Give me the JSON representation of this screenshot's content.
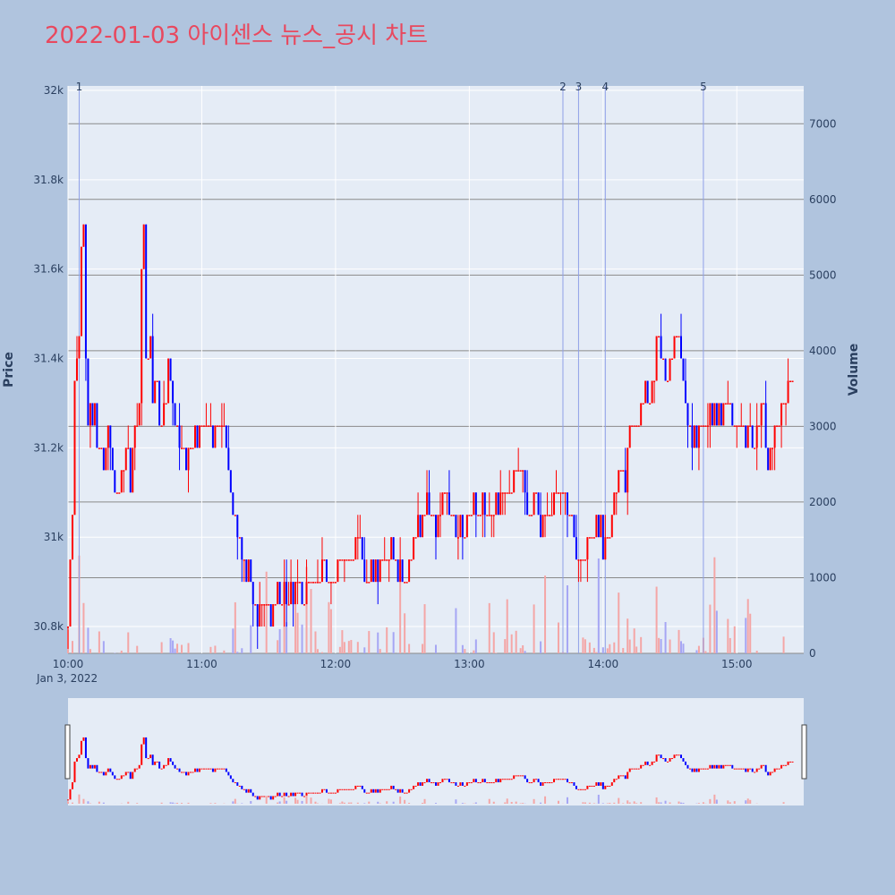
{
  "chart_data": {
    "type": "candlestick",
    "title": "2022-01-03 아이센스 뉴스_공시 차트",
    "ylabel": "Price",
    "y2label": "Volume",
    "x_ticks": [
      "10:00",
      "11:00",
      "12:00",
      "13:00",
      "14:00",
      "15:00"
    ],
    "x_date_label": "Jan 3, 2022",
    "time_range": [
      "10:00",
      "15:30"
    ],
    "price_ticks": [
      "30.8k",
      "31k",
      "31.2k",
      "31.4k",
      "31.6k",
      "31.8k",
      "32k"
    ],
    "price_tick_values": [
      30800,
      31000,
      31200,
      31400,
      31600,
      31800,
      32000
    ],
    "price_range": [
      30740,
      32010
    ],
    "volume_ticks": [
      "0",
      "1000",
      "2000",
      "3000",
      "4000",
      "5000",
      "6000",
      "7000"
    ],
    "volume_tick_values": [
      0,
      1000,
      2000,
      3000,
      4000,
      5000,
      6000,
      7000
    ],
    "volume_range": [
      0,
      7500
    ],
    "colors": {
      "up": "#ff0000",
      "down": "#0000ff",
      "up_volume": "#f4a6a6",
      "down_volume": "#a6a6f4",
      "news_line": "#8fa0e8"
    },
    "news_markers": [
      {
        "label": "1",
        "time": "10:05"
      },
      {
        "label": "2",
        "time": "13:42"
      },
      {
        "label": "3",
        "time": "13:49"
      },
      {
        "label": "4",
        "time": "14:01"
      },
      {
        "label": "5",
        "time": "14:45"
      }
    ],
    "price_path": [
      [
        "10:00",
        30800
      ],
      [
        "10:01",
        31000
      ],
      [
        "10:02",
        31050
      ],
      [
        "10:03",
        31350
      ],
      [
        "10:04",
        31400
      ],
      [
        "10:05",
        31450
      ],
      [
        "10:06",
        31650
      ],
      [
        "10:07",
        31700
      ],
      [
        "10:08",
        31400
      ],
      [
        "10:09",
        31250
      ],
      [
        "10:10",
        31300
      ],
      [
        "10:12",
        31250
      ],
      [
        "10:14",
        31200
      ],
      [
        "10:16",
        31150
      ],
      [
        "10:18",
        31250
      ],
      [
        "10:20",
        31150
      ],
      [
        "10:22",
        31100
      ],
      [
        "10:24",
        31150
      ],
      [
        "10:26",
        31200
      ],
      [
        "10:28",
        31150
      ],
      [
        "10:30",
        31250
      ],
      [
        "10:32",
        31300
      ],
      [
        "10:33",
        31600
      ],
      [
        "10:34",
        31700
      ],
      [
        "10:35",
        31400
      ],
      [
        "10:37",
        31450
      ],
      [
        "10:38",
        31300
      ],
      [
        "10:40",
        31350
      ],
      [
        "10:42",
        31250
      ],
      [
        "10:45",
        31400
      ],
      [
        "10:47",
        31300
      ],
      [
        "10:50",
        31200
      ],
      [
        "10:53",
        31150
      ],
      [
        "10:56",
        31200
      ],
      [
        "11:00",
        31250
      ],
      [
        "11:05",
        31250
      ],
      [
        "11:10",
        31250
      ],
      [
        "11:13",
        31100
      ],
      [
        "11:16",
        31050
      ],
      [
        "11:19",
        30950
      ],
      [
        "11:22",
        30900
      ],
      [
        "11:25",
        30800
      ],
      [
        "11:28",
        30850
      ],
      [
        "11:31",
        30800
      ],
      [
        "11:34",
        30900
      ],
      [
        "11:38",
        30850
      ],
      [
        "11:42",
        30900
      ],
      [
        "11:46",
        30850
      ],
      [
        "11:50",
        30900
      ],
      [
        "11:55",
        30950
      ],
      [
        "12:00",
        30900
      ],
      [
        "12:05",
        30950
      ],
      [
        "12:10",
        31000
      ],
      [
        "12:15",
        30900
      ],
      [
        "12:20",
        30950
      ],
      [
        "12:25",
        30950
      ],
      [
        "12:30",
        30900
      ],
      [
        "12:35",
        31000
      ],
      [
        "12:40",
        31050
      ],
      [
        "12:45",
        31050
      ],
      [
        "12:50",
        31100
      ],
      [
        "12:55",
        31000
      ],
      [
        "13:00",
        31050
      ],
      [
        "13:10",
        31050
      ],
      [
        "13:18",
        31100
      ],
      [
        "13:22",
        31150
      ],
      [
        "13:27",
        31050
      ],
      [
        "13:35",
        31050
      ],
      [
        "13:42",
        31100
      ],
      [
        "13:46",
        31000
      ],
      [
        "13:50",
        30950
      ],
      [
        "13:55",
        31000
      ],
      [
        "14:01",
        31000
      ],
      [
        "14:05",
        31100
      ],
      [
        "14:10",
        31150
      ],
      [
        "14:13",
        31250
      ],
      [
        "14:18",
        31300
      ],
      [
        "14:22",
        31350
      ],
      [
        "14:25",
        31450
      ],
      [
        "14:28",
        31350
      ],
      [
        "14:31",
        31400
      ],
      [
        "14:34",
        31450
      ],
      [
        "14:37",
        31300
      ],
      [
        "14:40",
        31200
      ],
      [
        "14:45",
        31250
      ],
      [
        "14:50",
        31250
      ],
      [
        "14:55",
        31300
      ],
      [
        "15:00",
        31250
      ],
      [
        "15:05",
        31250
      ],
      [
        "15:08",
        31200
      ],
      [
        "15:11",
        31300
      ],
      [
        "15:14",
        31150
      ],
      [
        "15:17",
        31250
      ],
      [
        "15:20",
        31300
      ],
      [
        "15:25",
        31350
      ]
    ]
  }
}
